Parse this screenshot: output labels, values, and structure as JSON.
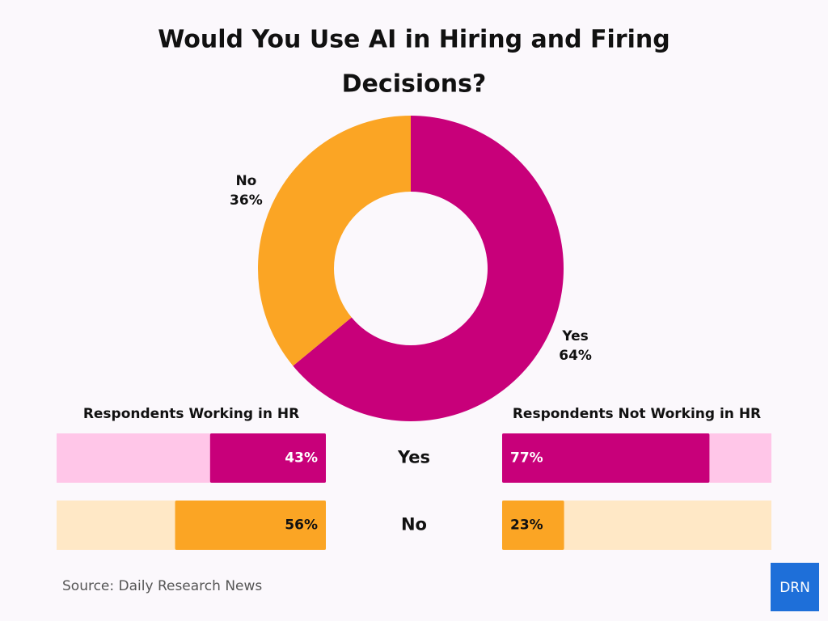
{
  "title": "Would You Use AI in Hiring and Firing Decisions?",
  "chart_data": [
    {
      "type": "pie",
      "categories": [
        "Yes",
        "No"
      ],
      "values": [
        64,
        36
      ],
      "value_labels": [
        "64%",
        "36%"
      ],
      "colors": [
        "#c8007a",
        "#fba524"
      ],
      "donut": true
    },
    {
      "type": "bar",
      "orientation": "horizontal",
      "categories": [
        "Yes",
        "No"
      ],
      "colors": [
        "#c8007a",
        "#fba524"
      ],
      "track_colors": [
        "#ffc6e8",
        "#ffe8c6"
      ],
      "xlim": [
        0,
        100
      ],
      "series": [
        {
          "name": "Respondents Working in HR",
          "values": [
            43,
            56
          ],
          "value_labels": [
            "43%",
            "56%"
          ]
        },
        {
          "name": "Respondents Not Working in HR",
          "values": [
            77,
            23
          ],
          "value_labels": [
            "77%",
            "23%"
          ]
        }
      ]
    }
  ],
  "source": "Source: Daily Research News",
  "logo": "DRN"
}
